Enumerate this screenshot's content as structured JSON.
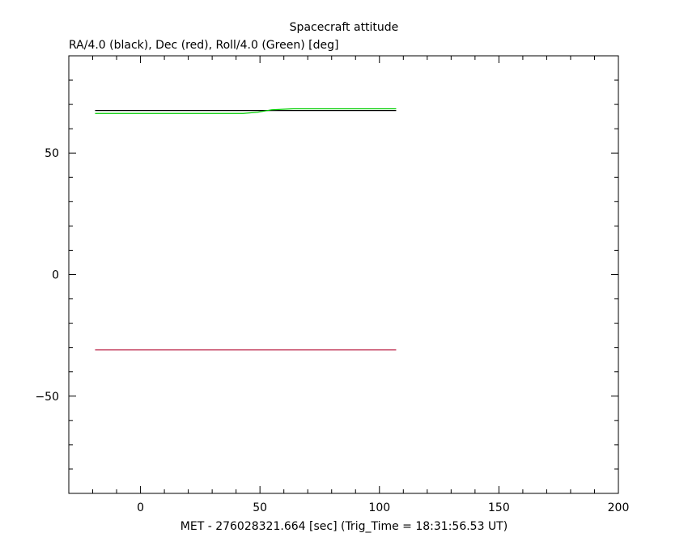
{
  "chart_data": {
    "type": "line",
    "title": "Spacecraft attitude",
    "subtitle": "RA/4.0 (black), Dec (red), Roll/4.0 (Green) [deg]",
    "xlabel": "MET - 276028321.664 [sec] (Trig_Time = 18:31:56.53 UT)",
    "ylabel": "",
    "xlim": [
      -30,
      200
    ],
    "ylim": [
      -90,
      90
    ],
    "xticks": [
      0,
      50,
      100,
      150,
      200
    ],
    "yticks": [
      50,
      0,
      -50
    ],
    "xtick_labels": [
      "0",
      "50",
      "100",
      "150",
      "200"
    ],
    "ytick_labels": [
      "50",
      "0",
      "−50"
    ],
    "x_minor_step": 10,
    "y_minor_step": 10,
    "grid": false,
    "legend": "none",
    "series": [
      {
        "color": "#000000",
        "points": [
          [
            -19,
            67.5
          ],
          [
            40,
            67.5
          ],
          [
            107,
            67.5
          ]
        ]
      },
      {
        "color": "#b0002a",
        "points": [
          [
            -19,
            -31.0
          ],
          [
            107,
            -31.0
          ]
        ]
      },
      {
        "color": "#00cc00",
        "points": [
          [
            -19,
            66.3
          ],
          [
            43,
            66.3
          ],
          [
            49,
            66.8
          ],
          [
            55,
            67.8
          ],
          [
            64,
            68.2
          ],
          [
            107,
            68.2
          ]
        ]
      }
    ]
  }
}
